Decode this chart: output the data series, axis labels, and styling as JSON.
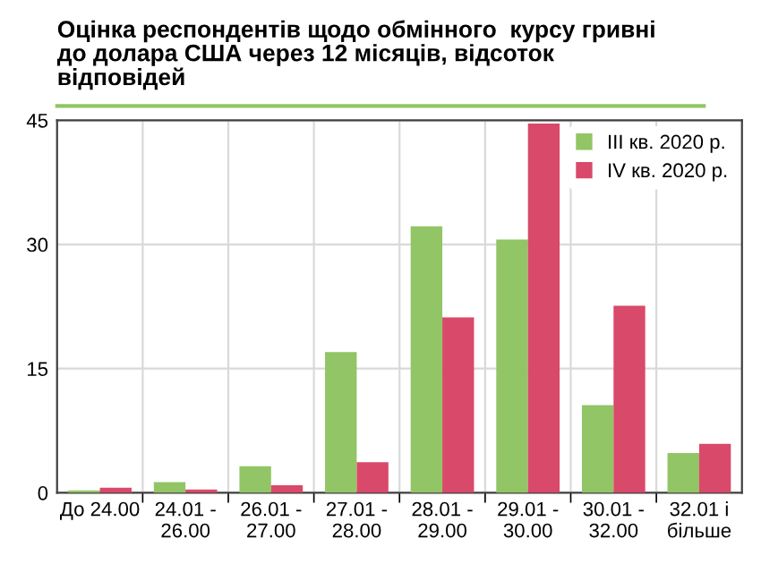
{
  "chart_data": {
    "type": "bar",
    "title": "Оцінка респондентів щодо обмінного  курсу гривні\nдо долара США через 12 місяців, відсоток\nвідповідей",
    "categories": [
      "До 24.00",
      "24.01 -\n26.00",
      "26.01 -\n27.00",
      "27.01 -\n28.00",
      "28.01 -\n29.00",
      "29.01 -\n30.00",
      "30.01 -\n32.00",
      "32.01 і\nбільше"
    ],
    "series": [
      {
        "name": "III кв. 2020 р.",
        "color": "#92c565",
        "values": [
          0.3,
          1.3,
          3.2,
          17.0,
          32.2,
          30.6,
          10.6,
          4.8
        ]
      },
      {
        "name": "IV кв. 2020 р.",
        "color": "#d9496a",
        "values": [
          0.6,
          0.4,
          0.9,
          3.7,
          21.2,
          44.6,
          22.6,
          5.9
        ]
      }
    ],
    "ylim": [
      0,
      45
    ],
    "yticks": [
      0,
      15,
      30,
      45
    ],
    "grid": true,
    "legend": "top right"
  }
}
